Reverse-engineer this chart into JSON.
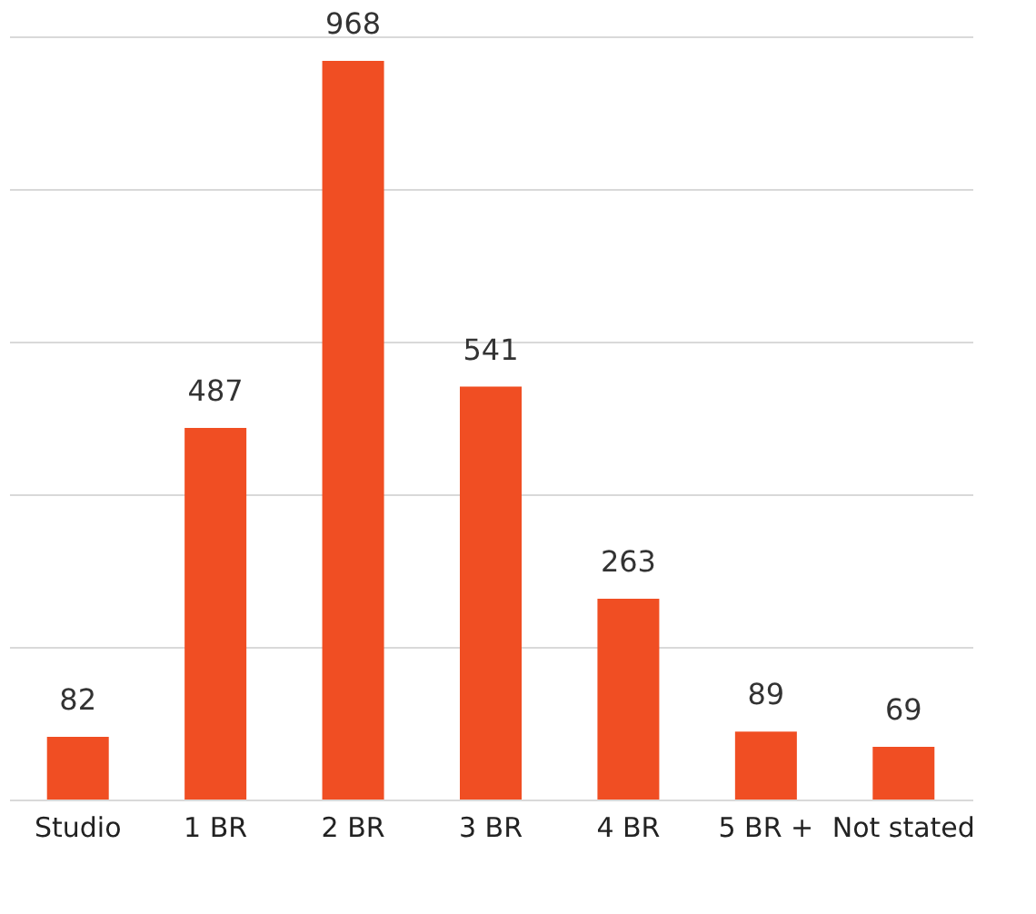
{
  "chart_data": {
    "type": "bar",
    "categories": [
      "Studio",
      "1 BR",
      "2 BR",
      "3 BR",
      "4 BR",
      "5 BR +",
      "Not stated"
    ],
    "values": [
      82,
      487,
      968,
      541,
      263,
      89,
      69
    ],
    "color": "#f04e23",
    "ylim": [
      0,
      1000
    ],
    "yticks": [
      {
        "value": 0,
        "label": null
      },
      {
        "value": 200,
        "label": null
      },
      {
        "value": 400,
        "label": null
      },
      {
        "value": 600,
        "label": null
      },
      {
        "value": 800,
        "label": null
      },
      {
        "value": 1000,
        "label": null
      }
    ],
    "tick_labels": "x",
    "grid": "y",
    "data_labels": true
  }
}
